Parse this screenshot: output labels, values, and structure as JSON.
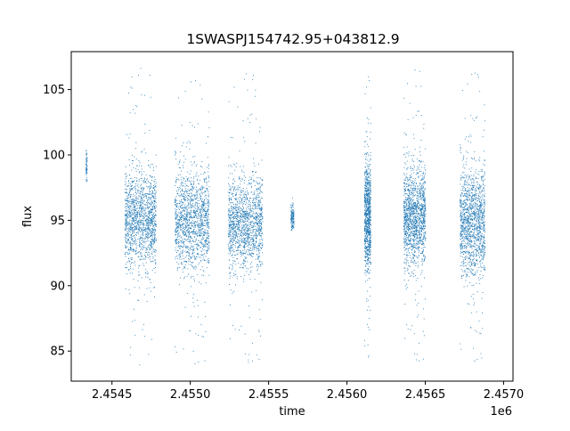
{
  "chart_data": {
    "type": "scatter",
    "title": "1SWASPJ154742.95+043812.9",
    "xlabel": "time",
    "ylabel": "flux",
    "x_offset_label": "1e6",
    "xlim": [
      2454240,
      2457060
    ],
    "ylim": [
      82.7,
      107.9
    ],
    "x_ticks": [
      2454500,
      2455000,
      2455500,
      2456000,
      2456500,
      2457000
    ],
    "x_tick_labels": [
      "2.4545",
      "2.4550",
      "2.4555",
      "2.4560",
      "2.4565",
      "2.4570"
    ],
    "y_ticks": [
      85,
      90,
      95,
      100,
      105
    ],
    "y_tick_labels": [
      "85",
      "90",
      "95",
      "100",
      "105"
    ],
    "grid": false,
    "marker_color": "#1f77b4",
    "series": [
      {
        "clusters": [
          {
            "x_start": 2454330,
            "x_end": 2454340,
            "y_center": 99.1,
            "y_spread": 0.7,
            "y_min": 97.8,
            "y_max": 100.4,
            "n": 60
          },
          {
            "x_start": 2454580,
            "x_end": 2454780,
            "y_center": 95.0,
            "y_spread": 1.8,
            "y_min": 83.9,
            "y_max": 106.7,
            "n": 1400
          },
          {
            "x_start": 2454900,
            "x_end": 2455120,
            "y_center": 95.0,
            "y_spread": 1.8,
            "y_min": 83.8,
            "y_max": 106.3,
            "n": 1400
          },
          {
            "x_start": 2455240,
            "x_end": 2455460,
            "y_center": 94.7,
            "y_spread": 1.8,
            "y_min": 83.9,
            "y_max": 106.5,
            "n": 1400
          },
          {
            "x_start": 2455640,
            "x_end": 2455660,
            "y_center": 95.3,
            "y_spread": 0.5,
            "y_min": 94.2,
            "y_max": 97.3,
            "n": 140
          },
          {
            "x_start": 2456110,
            "x_end": 2456150,
            "y_center": 95.2,
            "y_spread": 2.0,
            "y_min": 84.3,
            "y_max": 106.6,
            "n": 900
          },
          {
            "x_start": 2456360,
            "x_end": 2456500,
            "y_center": 95.3,
            "y_spread": 1.9,
            "y_min": 83.9,
            "y_max": 106.8,
            "n": 1400
          },
          {
            "x_start": 2456720,
            "x_end": 2456880,
            "y_center": 94.8,
            "y_spread": 2.0,
            "y_min": 84.0,
            "y_max": 106.9,
            "n": 1400
          }
        ]
      }
    ]
  }
}
